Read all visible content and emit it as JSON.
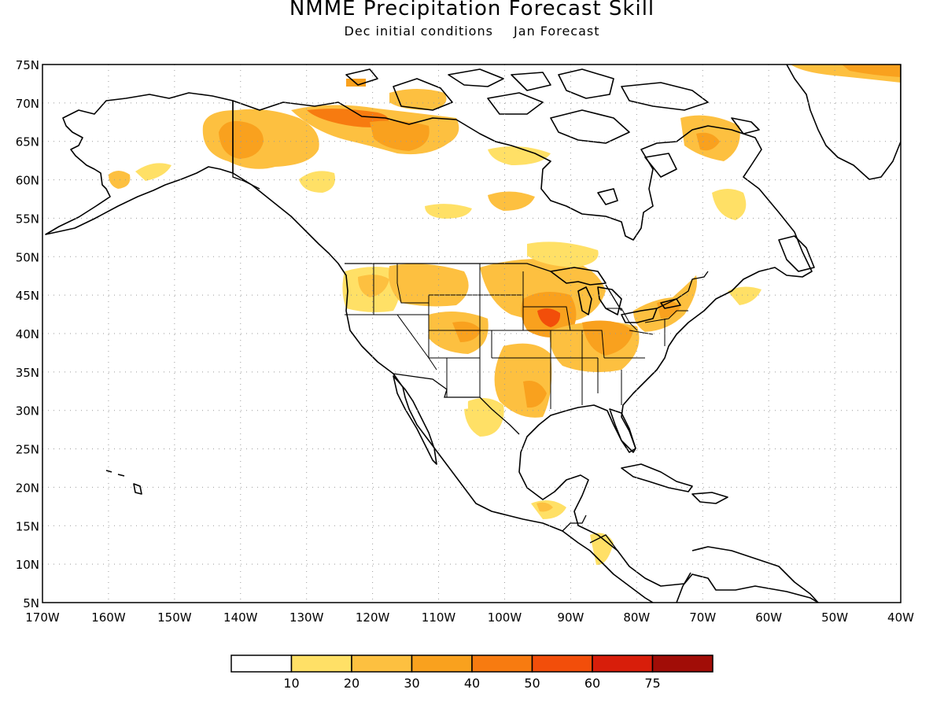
{
  "title": "NMME Precipitation Forecast Skill",
  "subtitle": {
    "left": "Dec initial conditions",
    "right": "Jan Forecast"
  },
  "map": {
    "lon_range": [
      -170,
      -40
    ],
    "lat_range": [
      5,
      75
    ],
    "lon_labels": [
      "170W",
      "160W",
      "150W",
      "140W",
      "130W",
      "120W",
      "110W",
      "100W",
      "90W",
      "80W",
      "70W",
      "60W",
      "50W",
      "40W"
    ],
    "lat_labels": [
      "5N",
      "10N",
      "15N",
      "20N",
      "25N",
      "30N",
      "35N",
      "40N",
      "45N",
      "50N",
      "55N",
      "60N",
      "65N",
      "70N",
      "75N"
    ],
    "grid": "dotted",
    "coastline_color": "#000000"
  },
  "colorbar": {
    "colors": [
      "#ffffff",
      "#ffe066",
      "#fdc040",
      "#f9a11e",
      "#f77b10",
      "#f24e0a",
      "#d81e0a",
      "#a10d07"
    ],
    "labels": [
      "10",
      "20",
      "30",
      "40",
      "50",
      "60",
      "75"
    ]
  },
  "skill_regions": [
    {
      "name": "alaska-central",
      "level": 3
    },
    {
      "name": "yukon",
      "level": 3
    },
    {
      "name": "nw-territories",
      "level": 4
    },
    {
      "name": "western-alaska",
      "level": 2
    },
    {
      "name": "labrador",
      "level": 2
    },
    {
      "name": "quebec-coast",
      "level": 1
    },
    {
      "name": "hudson-bay-south",
      "level": 1
    },
    {
      "name": "pacific-northwest",
      "level": 2
    },
    {
      "name": "northern-rockies",
      "level": 2
    },
    {
      "name": "central-rockies",
      "level": 2
    },
    {
      "name": "upper-midwest",
      "level": 3
    },
    {
      "name": "iowa",
      "level": 5
    },
    {
      "name": "ohio-valley",
      "level": 3
    },
    {
      "name": "southern-plains",
      "level": 3
    },
    {
      "name": "northeast-us",
      "level": 3
    },
    {
      "name": "northern-mexico",
      "level": 1
    },
    {
      "name": "yucatan",
      "level": 1
    },
    {
      "name": "central-america",
      "level": 1
    },
    {
      "name": "greenland-north",
      "level": 3
    }
  ]
}
